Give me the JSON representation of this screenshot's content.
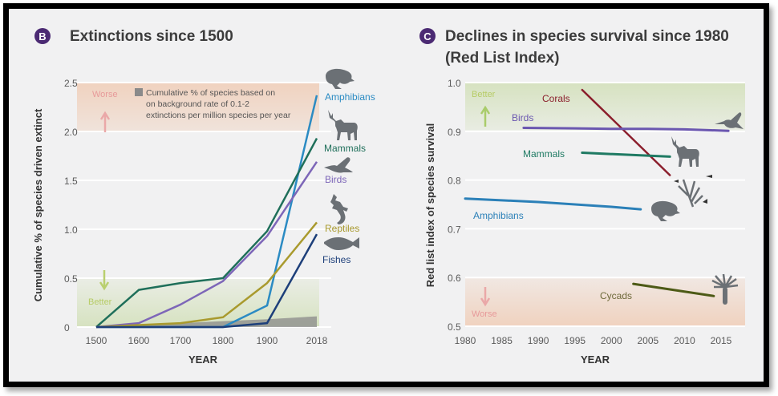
{
  "colors": {
    "badge": "#4b2a73",
    "title": "#3c3c3c",
    "axis_text": "#5a5a5a",
    "grid": "#ffffff",
    "worse_band": "#f0d2bf",
    "better_band": "#d6e2c0",
    "worse_text": "#e79a9a",
    "better_text": "#b7cc66",
    "background_rate": "#8a8a8a",
    "icon": "#6b7075"
  },
  "chart_data": [
    {
      "id": "B",
      "type": "line",
      "badge": "B",
      "title": "Extinctions since 1500",
      "xlabel": "YEAR",
      "ylabel": "Cumulative % of species driven extinct",
      "x_ticks": [
        "1500",
        "1600",
        "1700",
        "1800",
        "1900",
        "2018"
      ],
      "y_ticks": [
        "0",
        "0.5",
        "1.0",
        "1.5",
        "2.0",
        "2.5"
      ],
      "ylim": [
        0,
        2.5
      ],
      "grid": true,
      "band_worse": {
        "label": "Worse",
        "from": 2.0,
        "to": 2.5
      },
      "band_better": {
        "label": "Better",
        "from": 0,
        "to": 0.5
      },
      "legend": "Cumulative % of species based on on background rate of 0.1-2 extinctions per million species per year",
      "legend_lines": [
        "Cumulative % of species based on",
        "on background rate of 0.1-2",
        "extinctions per million species per year"
      ],
      "background_rate": {
        "values": [
          0,
          0.02,
          0.04,
          0.06,
          0.08,
          0.11
        ]
      },
      "series": [
        {
          "name": "Amphibians",
          "color": "#2b8bc3",
          "icon": "frog-icon",
          "values": [
            0,
            0,
            0,
            0,
            0.22,
            2.37
          ]
        },
        {
          "name": "Mammals",
          "color": "#1f6f5a",
          "icon": "deer-icon",
          "values": [
            0,
            0.38,
            0.45,
            0.5,
            0.98,
            1.93
          ]
        },
        {
          "name": "Birds",
          "color": "#7d66b8",
          "icon": "bird-icon",
          "values": [
            0,
            0.04,
            0.23,
            0.47,
            0.93,
            1.69
          ]
        },
        {
          "name": "Reptiles",
          "color": "#a99a2e",
          "icon": "lizard-icon",
          "values": [
            0,
            0.02,
            0.04,
            0.1,
            0.45,
            1.07
          ]
        },
        {
          "name": "Fishes",
          "color": "#1d3f7a",
          "icon": "fish-icon",
          "values": [
            0,
            0,
            0,
            0,
            0.04,
            0.95
          ]
        }
      ]
    },
    {
      "id": "C",
      "type": "line",
      "badge": "C",
      "title": "Declines in species survival since 1980",
      "subtitle": "(Red List Index)",
      "xlabel": "YEAR",
      "ylabel": "Red list index of species survival",
      "x_ticks": [
        "1980",
        "1985",
        "1990",
        "1995",
        "2000",
        "2005",
        "2010",
        "2015"
      ],
      "xlim": [
        1980,
        2015
      ],
      "y_ticks": [
        "0.5",
        "0.6",
        "0.7",
        "0.8",
        "0.9",
        "1.0"
      ],
      "ylim": [
        0.5,
        1.0
      ],
      "grid": true,
      "band_better": {
        "label": "Better",
        "from": 0.9,
        "to": 1.0
      },
      "band_worse": {
        "label": "Worse",
        "from": 0.5,
        "to": 0.6
      },
      "series": [
        {
          "name": "Corals",
          "color": "#8b1e2c",
          "icon": "coral-icon",
          "x": [
            1996,
            2008
          ],
          "values": [
            0.985,
            0.81
          ]
        },
        {
          "name": "Birds",
          "color": "#6b57b0",
          "icon": "hummingbird-icon",
          "x": [
            1988,
            1995,
            2000,
            2005,
            2010,
            2016
          ],
          "values": [
            0.907,
            0.906,
            0.905,
            0.905,
            0.904,
            0.901
          ]
        },
        {
          "name": "Mammals",
          "color": "#1f7a63",
          "icon": "deer-icon",
          "x": [
            1996,
            2008
          ],
          "values": [
            0.856,
            0.848
          ]
        },
        {
          "name": "Amphibians",
          "color": "#2b80b8",
          "icon": "frog-icon",
          "x": [
            1980,
            1990,
            2000,
            2004
          ],
          "values": [
            0.762,
            0.755,
            0.745,
            0.74
          ]
        },
        {
          "name": "Cycads",
          "color": "#4d5a16",
          "icon": "cycad-icon",
          "x": [
            2003,
            2014
          ],
          "values": [
            0.587,
            0.562
          ]
        }
      ]
    }
  ]
}
